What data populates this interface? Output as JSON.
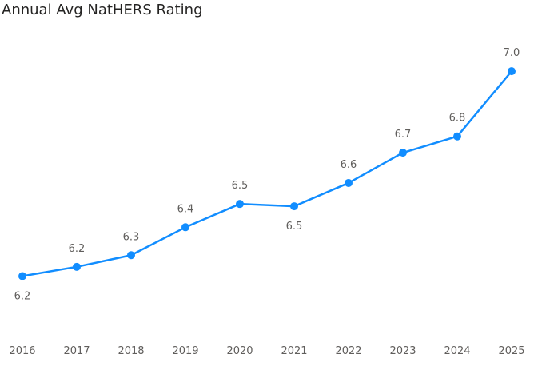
{
  "chart_data": {
    "type": "line",
    "title": "Annual Avg NatHERS Rating",
    "xlabel": "",
    "ylabel": "",
    "categories": [
      "2016",
      "2017",
      "2018",
      "2019",
      "2020",
      "2021",
      "2022",
      "2023",
      "2024",
      "2025"
    ],
    "series": [
      {
        "values": [
          6.17,
          6.21,
          6.26,
          6.38,
          6.48,
          6.47,
          6.57,
          6.7,
          6.77,
          7.05
        ],
        "labels": [
          "6.2",
          "6.2",
          "6.3",
          "6.4",
          "6.5",
          "6.5",
          "6.6",
          "6.7",
          "6.8",
          "7.0"
        ],
        "label_position": [
          "below",
          "above",
          "above",
          "above",
          "above",
          "below",
          "above",
          "above",
          "above",
          "above"
        ]
      }
    ],
    "ylim": [
      6.0,
      7.15
    ],
    "grid": false,
    "legend": "none",
    "line_color": "#118dff"
  }
}
